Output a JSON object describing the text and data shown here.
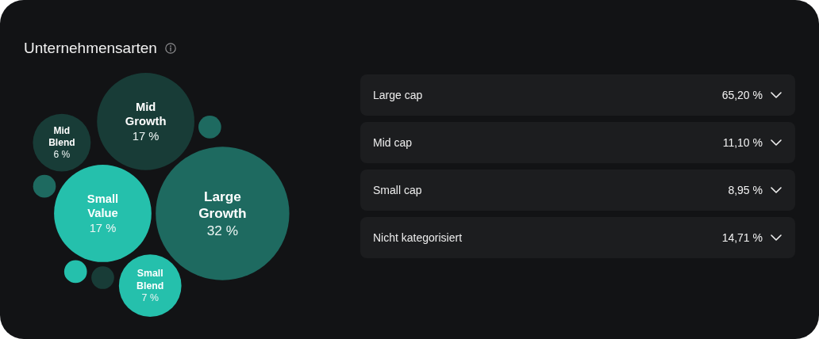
{
  "chart_data": [
    {
      "type": "other",
      "title": "Unternehmensarten",
      "categories": [
        "Large Growth",
        "Small Value",
        "Mid Growth",
        "Small Blend",
        "Mid Blend",
        null,
        null,
        null,
        null
      ],
      "values": [
        32,
        17,
        17,
        7,
        6,
        null,
        null,
        null,
        null
      ],
      "value_labels": [
        "32 %",
        "17 %",
        "17 %",
        "7 %",
        "6 %",
        null,
        null,
        null,
        null
      ],
      "colors": [
        "#1e6a60",
        "#25c0ac",
        "#183c37",
        "#25c0ac",
        "#183c37",
        "#1e6a60",
        "#183c37",
        "#1e6a60",
        "#25c0ac"
      ]
    },
    {
      "type": "other",
      "categories": [
        "Large cap",
        "Mid cap",
        "Small cap",
        "Nicht kategorisiert"
      ],
      "value_labels": [
        "65,20 %",
        "11,10 %",
        "8,95 %",
        "14,71 %"
      ]
    }
  ]
}
